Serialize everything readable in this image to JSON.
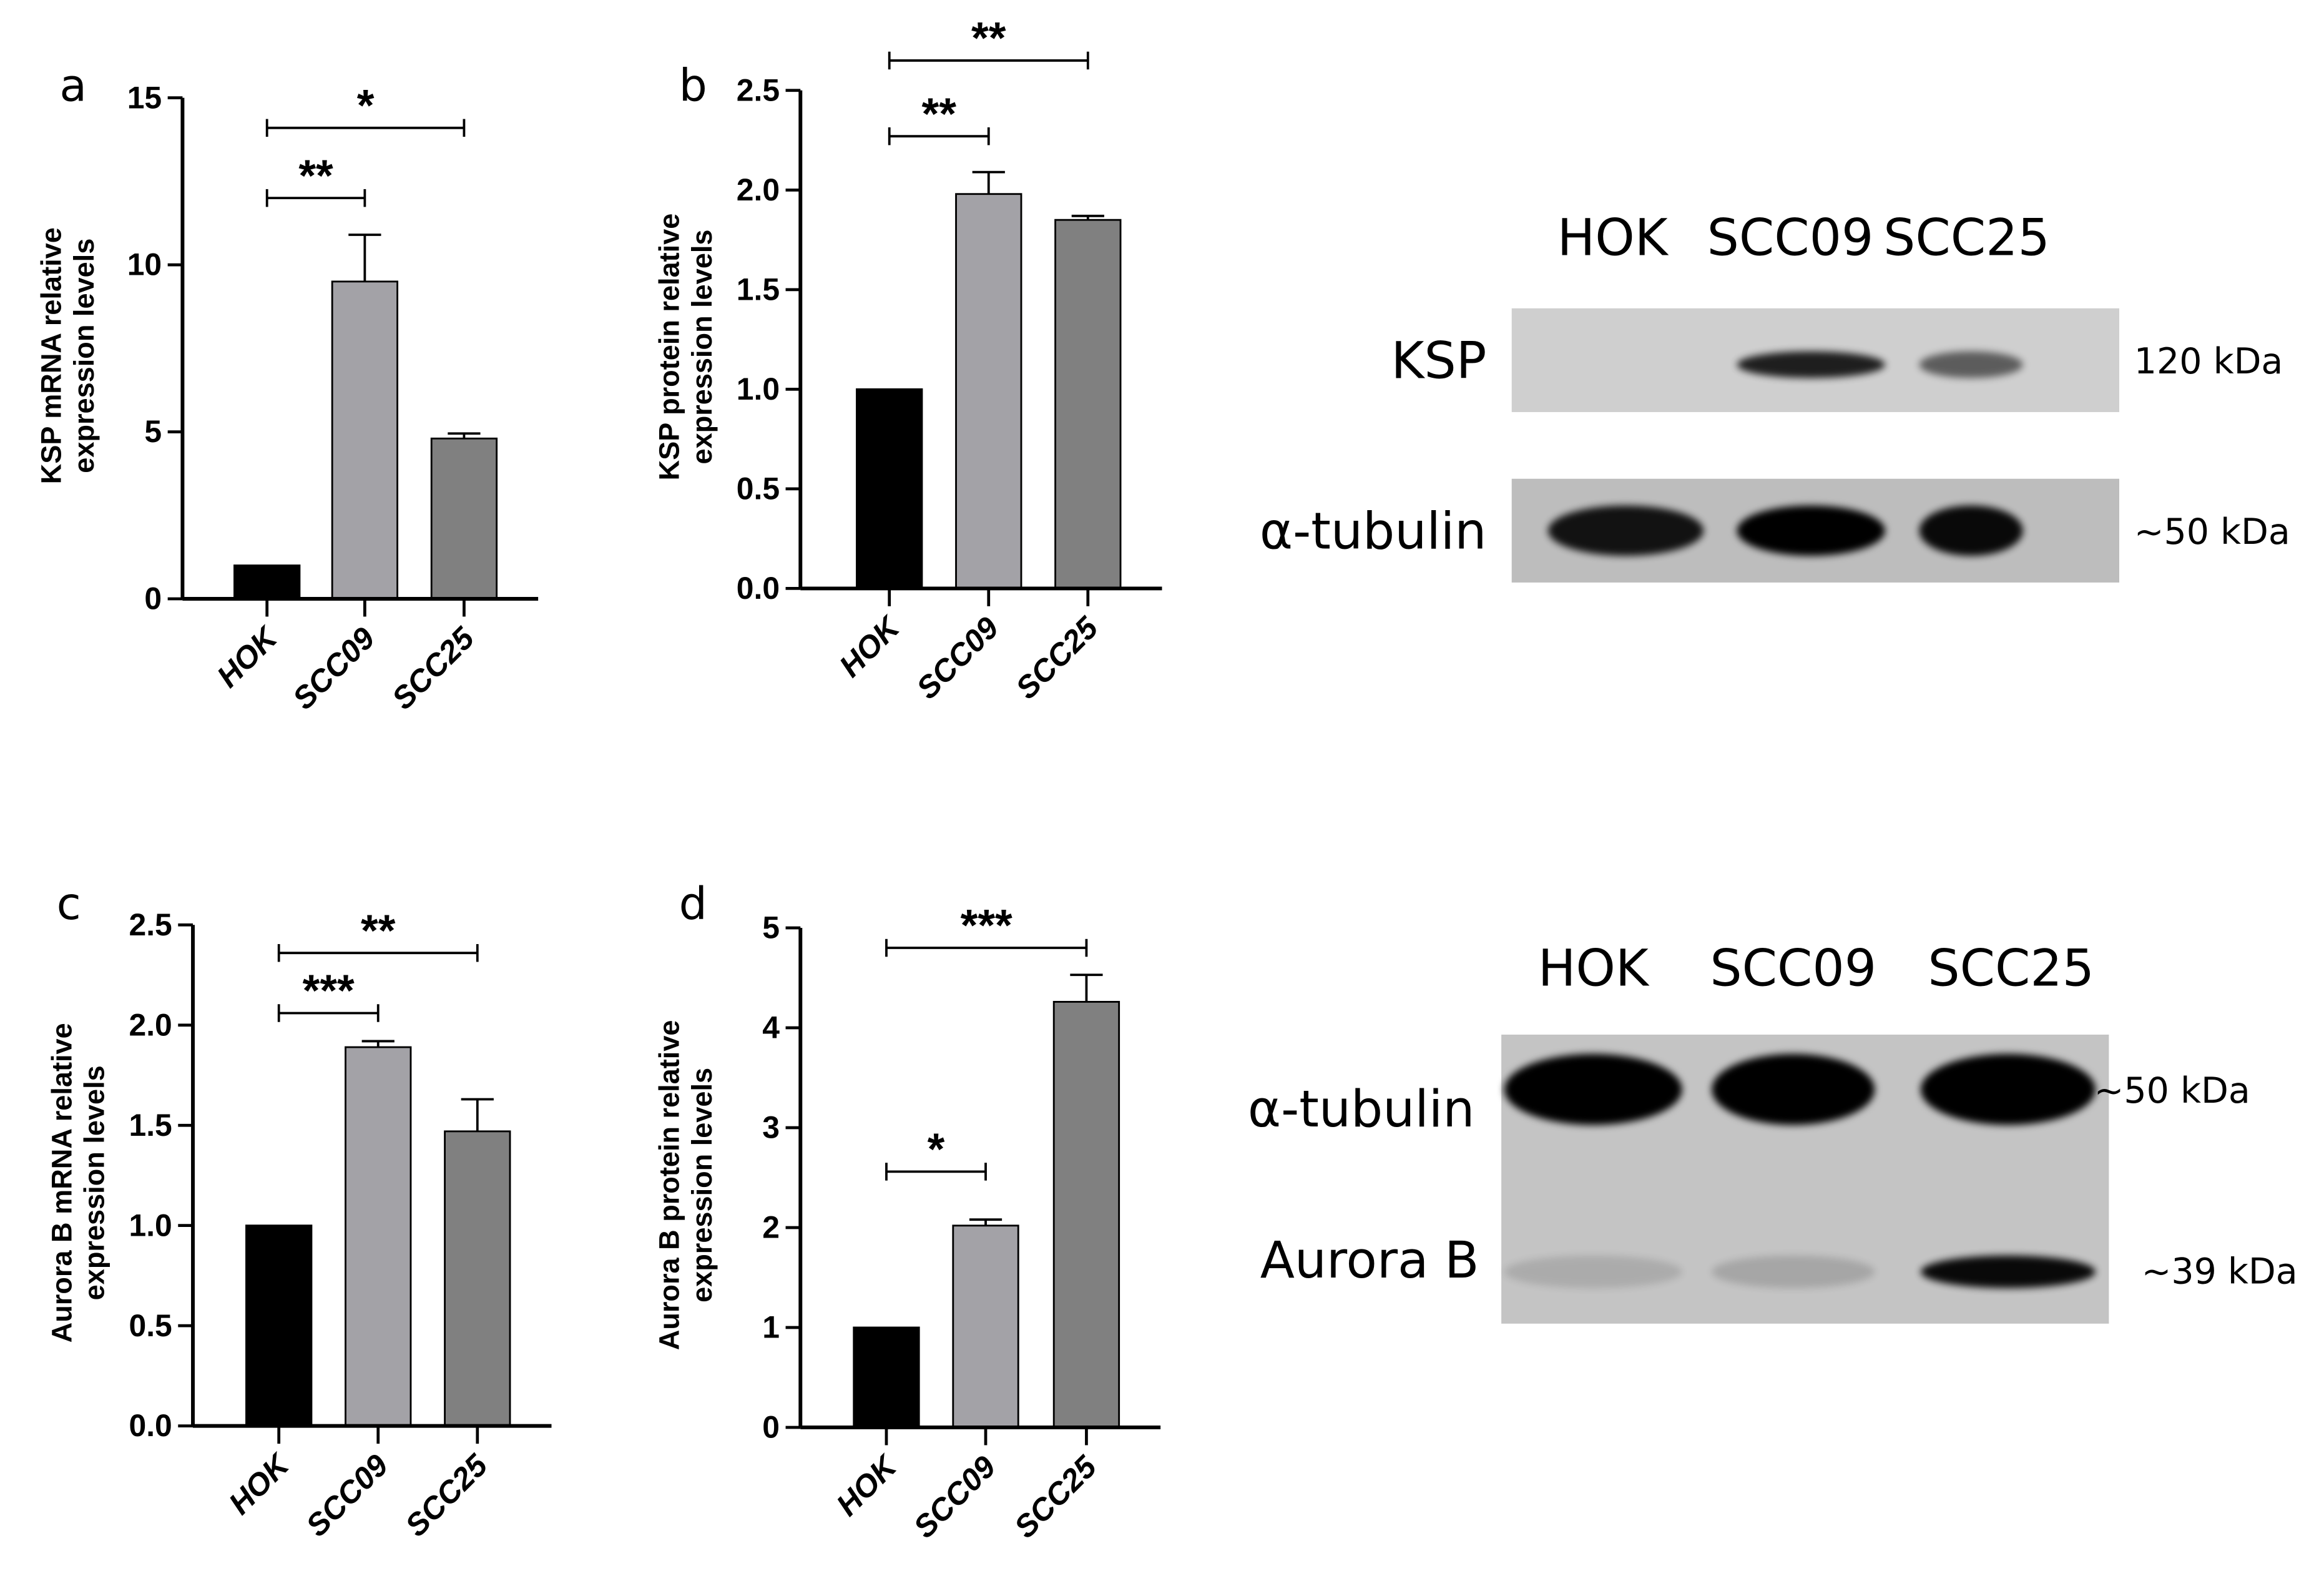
{
  "chart_data": [
    {
      "panel": "a",
      "type": "bar",
      "ylabel": [
        "KSP mRNA relative",
        "expression levels"
      ],
      "categories": [
        "HOK",
        "SCC09",
        "SCC25"
      ],
      "values": [
        1.0,
        9.5,
        4.8
      ],
      "error_upper": [
        1.0,
        10.9,
        4.95
      ],
      "ylim": [
        0,
        15
      ],
      "yticks": [
        0,
        5,
        10,
        15
      ],
      "ytick_labels": [
        "0",
        "5",
        "10",
        "15"
      ],
      "colors": [
        "#000000",
        "#a3a2a7",
        "#808080"
      ],
      "significance": [
        {
          "from": 0,
          "to": 1,
          "label": "**",
          "level": 12
        },
        {
          "from": 0,
          "to": 2,
          "label": "*",
          "level": 14.1
        }
      ]
    },
    {
      "panel": "b",
      "type": "bar",
      "ylabel": [
        "KSP protein relative",
        "expression levels"
      ],
      "categories": [
        "HOK",
        "SCC09",
        "SCC25"
      ],
      "values": [
        1.0,
        1.98,
        1.85
      ],
      "error_upper": [
        1.0,
        2.09,
        1.87
      ],
      "ylim": [
        0,
        2.5
      ],
      "yticks": [
        0,
        0.5,
        1.0,
        1.5,
        2.0,
        2.5
      ],
      "ytick_labels": [
        "0.0",
        "0.5",
        "1.0",
        "1.5",
        "2.0",
        "2.5"
      ],
      "colors": [
        "#000000",
        "#a3a2a7",
        "#808080"
      ],
      "significance": [
        {
          "from": 0,
          "to": 1,
          "label": "**",
          "level": 2.27
        },
        {
          "from": 0,
          "to": 2,
          "label": "**",
          "level": 2.65
        }
      ]
    },
    {
      "panel": "c",
      "type": "bar",
      "ylabel": [
        "Aurora B mRNA relative",
        "expression levels"
      ],
      "categories": [
        "HOK",
        "SCC09",
        "SCC25"
      ],
      "values": [
        1.0,
        1.89,
        1.47
      ],
      "error_upper": [
        1.0,
        1.92,
        1.63
      ],
      "ylim": [
        0,
        2.5
      ],
      "yticks": [
        0,
        0.5,
        1.0,
        1.5,
        2.0,
        2.5
      ],
      "ytick_labels": [
        "0.0",
        "0.5",
        "1.0",
        "1.5",
        "2.0",
        "2.5"
      ],
      "colors": [
        "#000000",
        "#a3a2a7",
        "#808080"
      ],
      "significance": [
        {
          "from": 0,
          "to": 1,
          "label": "***",
          "level": 2.06
        },
        {
          "from": 0,
          "to": 2,
          "label": "**",
          "level": 2.36
        }
      ]
    },
    {
      "panel": "d",
      "type": "bar",
      "ylabel": [
        "Aurora B protein relative",
        "expression levels"
      ],
      "categories": [
        "HOK",
        "SCC09",
        "SCC25"
      ],
      "values": [
        1.0,
        2.02,
        4.26
      ],
      "error_upper": [
        1.0,
        2.08,
        4.53
      ],
      "ylim": [
        0,
        5
      ],
      "yticks": [
        0,
        1,
        2,
        3,
        4,
        5
      ],
      "ytick_labels": [
        "0",
        "1",
        "2",
        "3",
        "4",
        "5"
      ],
      "colors": [
        "#000000",
        "#a3a2a7",
        "#808080"
      ],
      "significance": [
        {
          "from": 0,
          "to": 1,
          "label": "*",
          "level": 2.56
        },
        {
          "from": 0,
          "to": 2,
          "label": "***",
          "level": 4.8
        }
      ]
    }
  ],
  "blots": [
    {
      "lanes": [
        "HOK",
        "SCC09",
        "SCC25"
      ],
      "rows": [
        {
          "label": "KSP",
          "size": "120 kDa",
          "intensity": [
            0.0,
            0.85,
            0.55
          ]
        },
        {
          "label": "α-tubulin",
          "size": "~50 kDa",
          "intensity": [
            0.9,
            1.0,
            0.95
          ]
        }
      ]
    },
    {
      "lanes": [
        "HOK",
        "SCC09",
        "SCC25"
      ],
      "rows": [
        {
          "label": "α-tubulin",
          "size": "~50 kDa",
          "intensity": [
            1.0,
            1.0,
            1.0
          ]
        },
        {
          "label": "Aurora B",
          "size": "~39 kDa",
          "intensity": [
            0.12,
            0.15,
            0.95
          ]
        }
      ]
    }
  ]
}
